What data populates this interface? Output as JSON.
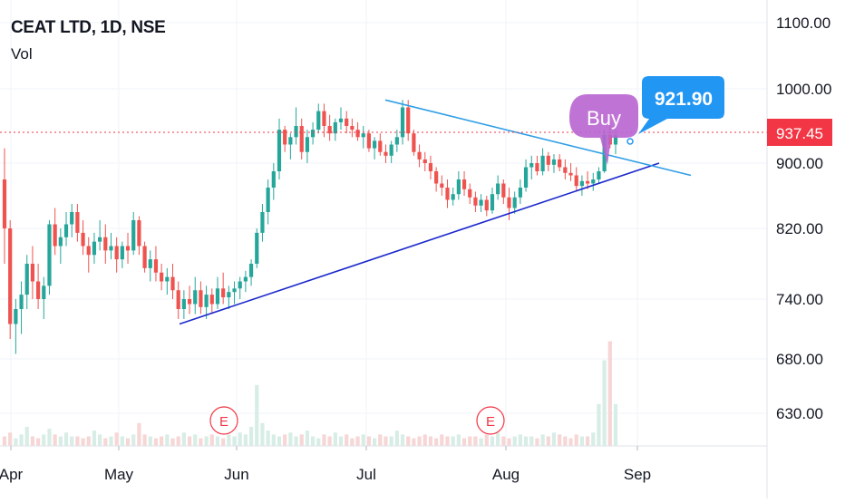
{
  "header": {
    "symbol_line": "CEAT LTD, 1D, NSE",
    "volume_label": "Vol"
  },
  "colors": {
    "up": "#26a69a",
    "down": "#ef5350",
    "up_volume": "#d7ede6",
    "down_volume": "#f7d6d6",
    "last_price": "#f23645",
    "callout": "#2196f3",
    "buy_bubble": "#b865d0",
    "support_line": "#1c29cc",
    "resistance_line": "#2f9ee6",
    "earnings": "#f23645",
    "grid": "#f0f3fa",
    "axis_text": "#131722"
  },
  "chart_data": {
    "type": "candlestick",
    "title": "CEAT LTD, 1D, NSE",
    "y_axis": {
      "ticks": [
        "1100.00",
        "1000.00",
        "900.00",
        "820.00",
        "740.00",
        "680.00",
        "630.00"
      ]
    },
    "x_axis": {
      "ticks": [
        "Apr",
        "May",
        "Jun",
        "Jul",
        "Aug",
        "Sep"
      ]
    },
    "ohlc_approx": [
      {
        "o": 880,
        "h": 920,
        "l": 780,
        "c": 820
      },
      {
        "o": 820,
        "h": 830,
        "l": 700,
        "c": 715
      },
      {
        "o": 715,
        "h": 740,
        "l": 685,
        "c": 730
      },
      {
        "o": 730,
        "h": 760,
        "l": 705,
        "c": 745
      },
      {
        "o": 745,
        "h": 790,
        "l": 730,
        "c": 780
      },
      {
        "o": 780,
        "h": 800,
        "l": 740,
        "c": 760
      },
      {
        "o": 760,
        "h": 780,
        "l": 730,
        "c": 740
      },
      {
        "o": 740,
        "h": 765,
        "l": 720,
        "c": 755
      },
      {
        "o": 755,
        "h": 830,
        "l": 745,
        "c": 825
      },
      {
        "o": 825,
        "h": 845,
        "l": 790,
        "c": 800
      },
      {
        "o": 800,
        "h": 820,
        "l": 780,
        "c": 810
      },
      {
        "o": 810,
        "h": 840,
        "l": 800,
        "c": 825
      },
      {
        "o": 825,
        "h": 850,
        "l": 810,
        "c": 840
      },
      {
        "o": 840,
        "h": 850,
        "l": 805,
        "c": 815
      },
      {
        "o": 815,
        "h": 830,
        "l": 790,
        "c": 800
      },
      {
        "o": 800,
        "h": 810,
        "l": 770,
        "c": 790
      },
      {
        "o": 790,
        "h": 815,
        "l": 780,
        "c": 805
      },
      {
        "o": 805,
        "h": 830,
        "l": 795,
        "c": 810
      },
      {
        "o": 810,
        "h": 825,
        "l": 780,
        "c": 795
      },
      {
        "o": 795,
        "h": 815,
        "l": 785,
        "c": 800
      },
      {
        "o": 800,
        "h": 810,
        "l": 770,
        "c": 785
      },
      {
        "o": 785,
        "h": 805,
        "l": 775,
        "c": 800
      },
      {
        "o": 800,
        "h": 815,
        "l": 780,
        "c": 795
      },
      {
        "o": 795,
        "h": 840,
        "l": 790,
        "c": 830
      },
      {
        "o": 830,
        "h": 835,
        "l": 790,
        "c": 800
      },
      {
        "o": 800,
        "h": 805,
        "l": 770,
        "c": 775
      },
      {
        "o": 775,
        "h": 795,
        "l": 760,
        "c": 785
      },
      {
        "o": 785,
        "h": 800,
        "l": 760,
        "c": 770
      },
      {
        "o": 770,
        "h": 780,
        "l": 750,
        "c": 760
      },
      {
        "o": 760,
        "h": 775,
        "l": 745,
        "c": 765
      },
      {
        "o": 765,
        "h": 780,
        "l": 740,
        "c": 750
      },
      {
        "o": 750,
        "h": 760,
        "l": 720,
        "c": 730
      },
      {
        "o": 730,
        "h": 750,
        "l": 720,
        "c": 740
      },
      {
        "o": 740,
        "h": 755,
        "l": 725,
        "c": 735
      },
      {
        "o": 735,
        "h": 765,
        "l": 725,
        "c": 750
      },
      {
        "o": 750,
        "h": 760,
        "l": 725,
        "c": 732
      },
      {
        "o": 732,
        "h": 755,
        "l": 720,
        "c": 745
      },
      {
        "o": 745,
        "h": 752,
        "l": 725,
        "c": 735
      },
      {
        "o": 735,
        "h": 765,
        "l": 730,
        "c": 752
      },
      {
        "o": 752,
        "h": 770,
        "l": 735,
        "c": 742
      },
      {
        "o": 742,
        "h": 755,
        "l": 730,
        "c": 748
      },
      {
        "o": 748,
        "h": 760,
        "l": 735,
        "c": 752
      },
      {
        "o": 752,
        "h": 765,
        "l": 740,
        "c": 760
      },
      {
        "o": 760,
        "h": 772,
        "l": 748,
        "c": 765
      },
      {
        "o": 765,
        "h": 785,
        "l": 755,
        "c": 780
      },
      {
        "o": 780,
        "h": 820,
        "l": 775,
        "c": 815
      },
      {
        "o": 815,
        "h": 850,
        "l": 805,
        "c": 840
      },
      {
        "o": 840,
        "h": 880,
        "l": 825,
        "c": 870
      },
      {
        "o": 870,
        "h": 900,
        "l": 855,
        "c": 890
      },
      {
        "o": 890,
        "h": 960,
        "l": 880,
        "c": 945
      },
      {
        "o": 945,
        "h": 950,
        "l": 915,
        "c": 925
      },
      {
        "o": 925,
        "h": 940,
        "l": 905,
        "c": 935
      },
      {
        "o": 935,
        "h": 975,
        "l": 925,
        "c": 950
      },
      {
        "o": 950,
        "h": 960,
        "l": 905,
        "c": 915
      },
      {
        "o": 915,
        "h": 945,
        "l": 900,
        "c": 935
      },
      {
        "o": 935,
        "h": 955,
        "l": 925,
        "c": 945
      },
      {
        "o": 945,
        "h": 980,
        "l": 940,
        "c": 970
      },
      {
        "o": 970,
        "h": 980,
        "l": 935,
        "c": 950
      },
      {
        "o": 950,
        "h": 965,
        "l": 930,
        "c": 940
      },
      {
        "o": 940,
        "h": 960,
        "l": 930,
        "c": 955
      },
      {
        "o": 955,
        "h": 975,
        "l": 945,
        "c": 960
      },
      {
        "o": 960,
        "h": 970,
        "l": 940,
        "c": 950
      },
      {
        "o": 950,
        "h": 960,
        "l": 935,
        "c": 945
      },
      {
        "o": 945,
        "h": 955,
        "l": 930,
        "c": 935
      },
      {
        "o": 935,
        "h": 950,
        "l": 920,
        "c": 940
      },
      {
        "o": 940,
        "h": 945,
        "l": 915,
        "c": 920
      },
      {
        "o": 920,
        "h": 935,
        "l": 905,
        "c": 930
      },
      {
        "o": 930,
        "h": 940,
        "l": 910,
        "c": 915
      },
      {
        "o": 915,
        "h": 925,
        "l": 900,
        "c": 910
      },
      {
        "o": 910,
        "h": 930,
        "l": 900,
        "c": 925
      },
      {
        "o": 925,
        "h": 945,
        "l": 915,
        "c": 935
      },
      {
        "o": 935,
        "h": 985,
        "l": 925,
        "c": 975
      },
      {
        "o": 975,
        "h": 985,
        "l": 930,
        "c": 940
      },
      {
        "o": 940,
        "h": 945,
        "l": 910,
        "c": 915
      },
      {
        "o": 915,
        "h": 925,
        "l": 895,
        "c": 905
      },
      {
        "o": 905,
        "h": 915,
        "l": 890,
        "c": 900
      },
      {
        "o": 900,
        "h": 910,
        "l": 880,
        "c": 890
      },
      {
        "o": 890,
        "h": 895,
        "l": 865,
        "c": 875
      },
      {
        "o": 875,
        "h": 885,
        "l": 860,
        "c": 870
      },
      {
        "o": 870,
        "h": 880,
        "l": 845,
        "c": 855
      },
      {
        "o": 855,
        "h": 870,
        "l": 848,
        "c": 862
      },
      {
        "o": 862,
        "h": 890,
        "l": 855,
        "c": 880
      },
      {
        "o": 880,
        "h": 890,
        "l": 860,
        "c": 868
      },
      {
        "o": 868,
        "h": 875,
        "l": 850,
        "c": 858
      },
      {
        "o": 858,
        "h": 865,
        "l": 840,
        "c": 848
      },
      {
        "o": 848,
        "h": 862,
        "l": 840,
        "c": 855
      },
      {
        "o": 855,
        "h": 860,
        "l": 835,
        "c": 842
      },
      {
        "o": 842,
        "h": 870,
        "l": 838,
        "c": 862
      },
      {
        "o": 862,
        "h": 885,
        "l": 855,
        "c": 875
      },
      {
        "o": 875,
        "h": 880,
        "l": 850,
        "c": 858
      },
      {
        "o": 858,
        "h": 870,
        "l": 830,
        "c": 845
      },
      {
        "o": 845,
        "h": 865,
        "l": 838,
        "c": 858
      },
      {
        "o": 858,
        "h": 880,
        "l": 850,
        "c": 870
      },
      {
        "o": 870,
        "h": 905,
        "l": 865,
        "c": 895
      },
      {
        "o": 895,
        "h": 910,
        "l": 880,
        "c": 900
      },
      {
        "o": 900,
        "h": 910,
        "l": 885,
        "c": 890
      },
      {
        "o": 890,
        "h": 920,
        "l": 885,
        "c": 910
      },
      {
        "o": 910,
        "h": 915,
        "l": 890,
        "c": 898
      },
      {
        "o": 898,
        "h": 912,
        "l": 888,
        "c": 905
      },
      {
        "o": 905,
        "h": 912,
        "l": 890,
        "c": 895
      },
      {
        "o": 895,
        "h": 905,
        "l": 880,
        "c": 888
      },
      {
        "o": 888,
        "h": 900,
        "l": 878,
        "c": 885
      },
      {
        "o": 885,
        "h": 895,
        "l": 865,
        "c": 872
      },
      {
        "o": 872,
        "h": 885,
        "l": 860,
        "c": 878
      },
      {
        "o": 878,
        "h": 890,
        "l": 868,
        "c": 875
      },
      {
        "o": 875,
        "h": 888,
        "l": 866,
        "c": 880
      },
      {
        "o": 880,
        "h": 895,
        "l": 875,
        "c": 890
      },
      {
        "o": 890,
        "h": 945,
        "l": 888,
        "c": 938
      },
      {
        "o": 938,
        "h": 955,
        "l": 920,
        "c": 925
      },
      {
        "o": 925,
        "h": 945,
        "l": 912,
        "c": 937.45
      }
    ],
    "volume_approx": [
      0.05,
      0.07,
      0.04,
      0.06,
      0.1,
      0.05,
      0.04,
      0.06,
      0.09,
      0.06,
      0.05,
      0.07,
      0.05,
      0.05,
      0.04,
      0.05,
      0.08,
      0.06,
      0.04,
      0.05,
      0.07,
      0.05,
      0.04,
      0.06,
      0.12,
      0.06,
      0.05,
      0.04,
      0.05,
      0.06,
      0.04,
      0.05,
      0.07,
      0.05,
      0.06,
      0.04,
      0.05,
      0.06,
      0.05,
      0.04,
      0.06,
      0.05,
      0.07,
      0.06,
      0.1,
      0.32,
      0.12,
      0.08,
      0.06,
      0.05,
      0.06,
      0.07,
      0.05,
      0.06,
      0.08,
      0.05,
      0.04,
      0.06,
      0.05,
      0.07,
      0.05,
      0.06,
      0.04,
      0.05,
      0.06,
      0.05,
      0.04,
      0.06,
      0.05,
      0.05,
      0.08,
      0.06,
      0.05,
      0.04,
      0.05,
      0.06,
      0.05,
      0.04,
      0.06,
      0.05,
      0.05,
      0.06,
      0.04,
      0.05,
      0.05,
      0.04,
      0.06,
      0.05,
      0.07,
      0.05,
      0.04,
      0.05,
      0.06,
      0.05,
      0.05,
      0.04,
      0.06,
      0.05,
      0.07,
      0.06,
      0.05,
      0.04,
      0.06,
      0.05,
      0.05,
      0.07,
      0.22,
      0.45,
      0.55,
      0.22
    ],
    "annotations": {
      "last_price": "937.45",
      "callout_price": "921.90",
      "buy_label": "Buy",
      "earnings_markers": [
        {
          "label": "E",
          "month": "May-Jun"
        },
        {
          "label": "E",
          "month": "Jul-Aug"
        }
      ],
      "trendlines": [
        {
          "name": "",
          "from": {
            "date": "mid May",
            "price": 715
          },
          "to": {
            "date": "early Sep",
            "price": 900
          }
        },
        {
          "name": "",
          "from": {
            "date": "early Jul",
            "price": 985
          },
          "to": {
            "date": "mid Sep",
            "price": 885
          }
        }
      ]
    }
  }
}
